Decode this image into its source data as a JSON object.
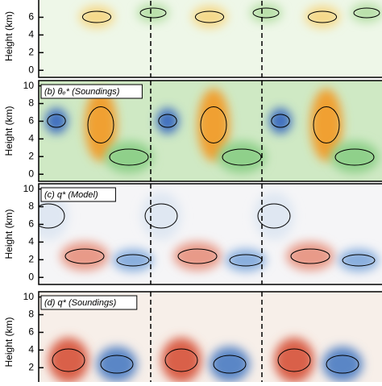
{
  "chart_data": [
    {
      "type": "contour",
      "ylabel": "Height (km)",
      "ylim": [
        -0.8,
        10.6
      ],
      "yticks": [
        0,
        2,
        4,
        6
      ]
    },
    {
      "type": "contour",
      "title": "(b) θₑ* (Soundings)",
      "ylabel": "Height (km)",
      "ylim": [
        -0.8,
        10.6
      ],
      "yticks": [
        0,
        2,
        4,
        6,
        8,
        10
      ]
    },
    {
      "type": "contour",
      "title": "(c) q* (Model)",
      "ylabel": "Height (km)",
      "ylim": [
        -0.8,
        10.6
      ],
      "yticks": [
        0,
        2,
        4,
        6,
        8,
        10
      ]
    },
    {
      "type": "contour",
      "title": "(d) q* (Soundings)",
      "ylabel": "Height (km)",
      "ylim": [
        -0.8,
        10.6
      ],
      "yticks": [
        2,
        4,
        6,
        8,
        10
      ]
    }
  ]
}
